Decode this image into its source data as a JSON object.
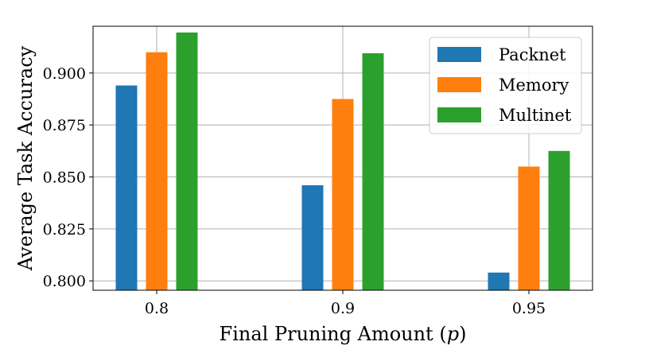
{
  "chart_data": {
    "type": "bar",
    "categories": [
      "0.8",
      "0.9",
      "0.95"
    ],
    "series": [
      {
        "name": "Packnet",
        "values": [
          0.894,
          0.846,
          0.804
        ],
        "color": "#1f77b4"
      },
      {
        "name": "Memory",
        "values": [
          0.91,
          0.8875,
          0.855
        ],
        "color": "#ff7f0e"
      },
      {
        "name": "Multinet",
        "values": [
          0.9195,
          0.9095,
          0.8625
        ],
        "color": "#2ca02c"
      }
    ],
    "xlabel": "Final Pruning Amount (p)",
    "xlabel_main": "Final Pruning Amount (",
    "xlabel_var": "p",
    "xlabel_close": ")",
    "ylabel": "Average Task Accuracy",
    "ylim": [
      0.7955,
      0.9225
    ],
    "yticks": [
      0.8,
      0.825,
      0.85,
      0.875,
      0.9
    ],
    "ytick_labels": [
      "0.800",
      "0.825",
      "0.850",
      "0.875",
      "0.900"
    ],
    "grid": true,
    "legend_position": "top-right"
  }
}
